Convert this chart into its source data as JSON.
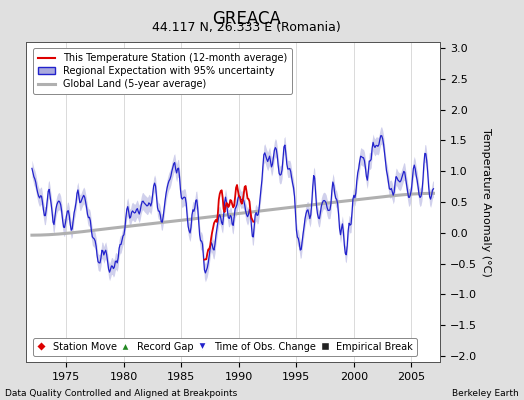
{
  "title": "GREACA",
  "subtitle": "44.117 N, 26.333 E (Romania)",
  "ylabel": "Temperature Anomaly (°C)",
  "xlim": [
    1971.5,
    2007.5
  ],
  "ylim": [
    -2.1,
    3.1
  ],
  "yticks": [
    -2,
    -1.5,
    -1,
    -0.5,
    0,
    0.5,
    1,
    1.5,
    2,
    2.5,
    3
  ],
  "xticks": [
    1975,
    1980,
    1985,
    1990,
    1995,
    2000,
    2005
  ],
  "footer_left": "Data Quality Controlled and Aligned at Breakpoints",
  "footer_right": "Berkeley Earth",
  "bg_color": "#e0e0e0",
  "plot_bg_color": "#ffffff",
  "regional_color": "#2222cc",
  "regional_band_color": "#aaaadd",
  "station_color": "#dd0000",
  "global_color": "#b0b0b0",
  "title_fontsize": 12,
  "subtitle_fontsize": 9,
  "tick_fontsize": 8,
  "ylabel_fontsize": 8,
  "legend_fontsize": 7,
  "footer_fontsize": 6.5
}
